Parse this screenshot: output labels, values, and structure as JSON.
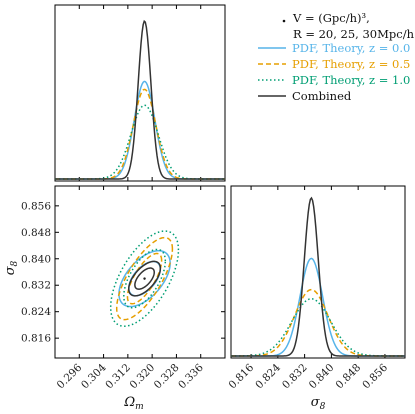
{
  "chart_data": {
    "type": "corner",
    "parameters": [
      {
        "key": "om",
        "symbol": "Ω",
        "subscript": "m"
      },
      {
        "key": "s8",
        "symbol": "σ",
        "subscript": "8"
      }
    ],
    "ranges": {
      "om": [
        0.288,
        0.344
      ],
      "s8": [
        0.81,
        0.862
      ]
    },
    "ticks": {
      "om": [
        0.296,
        0.304,
        0.312,
        0.32,
        0.328,
        0.336
      ],
      "s8": [
        0.816,
        0.824,
        0.832,
        0.84,
        0.848,
        0.856
      ]
    },
    "tick_labels": {
      "om": [
        "0.296",
        "0.304",
        "0.312",
        "0.320",
        "0.328",
        "0.336"
      ],
      "s8": [
        "0.816",
        "0.824",
        "0.832",
        "0.840",
        "0.848",
        "0.856"
      ]
    },
    "fiducial": {
      "om": 0.3175,
      "s8": 0.834
    },
    "colors": {
      "z0": "#56b4e9",
      "z05": "#e69f00",
      "z1": "#009e73",
      "combined": "#333333"
    },
    "series": [
      {
        "id": "z0",
        "line_style": "solid",
        "om_sigma": 0.0034,
        "s8_sigma": 0.0034,
        "corr": 0.55,
        "contour_levels_sigma": [
          1.52,
          2.48
        ]
      },
      {
        "id": "z05",
        "line_style": "dashed",
        "om_sigma": 0.0037,
        "s8_sigma": 0.005,
        "corr": 0.72,
        "contour_levels_sigma": [
          1.52,
          2.48
        ]
      },
      {
        "id": "z1",
        "line_style": "dotted",
        "om_sigma": 0.0045,
        "s8_sigma": 0.0058,
        "corr": 0.6,
        "contour_levels_sigma": [
          1.52,
          2.48
        ]
      },
      {
        "id": "combined",
        "line_style": "solid",
        "om_sigma": 0.0021,
        "s8_sigma": 0.0021,
        "corr": 0.6,
        "contour_levels_sigma": [
          1.52,
          2.48
        ]
      }
    ],
    "legend": {
      "placement": "top-right",
      "header_line1": "V = (Gpc/h)³,",
      "header_line2": "R = 20, 25, 30Mpc/h",
      "entries": [
        {
          "id": "z0",
          "label": "PDF, Theory, z = 0.0"
        },
        {
          "id": "z05",
          "label": "PDF, Theory, z = 0.5"
        },
        {
          "id": "z1",
          "label": "PDF, Theory, z = 1.0"
        },
        {
          "id": "combined",
          "label": "Combined"
        }
      ]
    }
  }
}
